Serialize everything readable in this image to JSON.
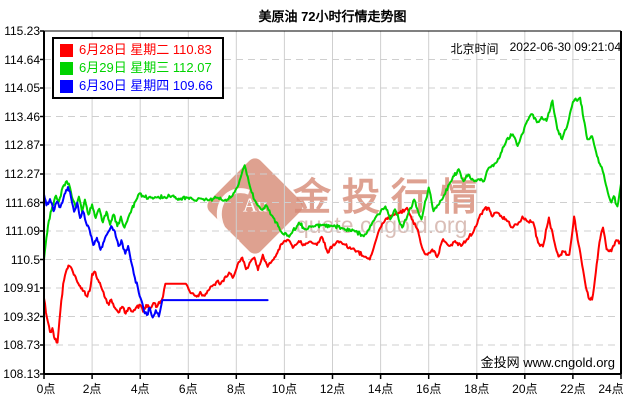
{
  "title": "美原油 72小时行情走势图",
  "header": {
    "timezone_label": "北京时间",
    "timestamp": "2022-06-30 09:21:04"
  },
  "footer": {
    "site": "金投网 www.cngold.org"
  },
  "watermark": {
    "brand": "金投行情",
    "url": "quote.cngold.org",
    "logo_text": "Au",
    "color": "#d58671"
  },
  "legend": {
    "entries": [
      {
        "label": "6月28日 星期二",
        "value": "110.83",
        "color": "#ff0000"
      },
      {
        "label": "6月29日 星期三",
        "value": "112.07",
        "color": "#00d300"
      },
      {
        "label": "6月30日 星期四",
        "value": "109.66",
        "color": "#0000ff"
      }
    ]
  },
  "chart_data": {
    "type": "line",
    "title": "美原油 72小时行情走势图",
    "x_axis": {
      "range_hours": [
        0,
        24
      ],
      "tick_hours": [
        0,
        2,
        4,
        6,
        8,
        10,
        12,
        14,
        16,
        18,
        20,
        22,
        24
      ],
      "tick_labels": [
        "0点",
        "2点",
        "4点",
        "6点",
        "8点",
        "10点",
        "12点",
        "14点",
        "16点",
        "18点",
        "20点",
        "22点",
        "24点"
      ]
    },
    "y_axis": {
      "range": [
        108.13,
        115.23
      ],
      "tick_labels": [
        "115.23",
        "114.64",
        "114.05",
        "113.46",
        "112.87",
        "112.27",
        "111.68",
        "111.09",
        "110.5",
        "109.91",
        "109.32",
        "108.73",
        "108.13"
      ]
    },
    "grid": {
      "horizontal": "dashed",
      "vertical": "solid",
      "color": "#cfcfcf"
    },
    "series": [
      {
        "name": "6月28日 星期二",
        "close": 110.83,
        "color": "#ff0000",
        "points": [
          [
            0,
            109.7
          ],
          [
            0.12,
            109.3
          ],
          [
            0.25,
            109.0
          ],
          [
            0.35,
            109.08
          ],
          [
            0.45,
            108.85
          ],
          [
            0.56,
            108.78
          ],
          [
            0.68,
            109.42
          ],
          [
            0.8,
            110.0
          ],
          [
            0.95,
            110.3
          ],
          [
            1.05,
            110.37
          ],
          [
            1.2,
            110.25
          ],
          [
            1.35,
            110.08
          ],
          [
            1.5,
            109.95
          ],
          [
            1.65,
            109.85
          ],
          [
            1.8,
            109.73
          ],
          [
            1.9,
            109.85
          ],
          [
            2.0,
            110.2
          ],
          [
            2.1,
            110.25
          ],
          [
            2.25,
            110.08
          ],
          [
            2.4,
            109.9
          ],
          [
            2.55,
            109.7
          ],
          [
            2.7,
            109.56
          ],
          [
            2.8,
            109.67
          ],
          [
            2.95,
            109.5
          ],
          [
            3.1,
            109.4
          ],
          [
            3.25,
            109.52
          ],
          [
            3.4,
            109.38
          ],
          [
            3.55,
            109.5
          ],
          [
            3.7,
            109.42
          ],
          [
            3.85,
            109.52
          ],
          [
            4.0,
            109.56
          ],
          [
            4.12,
            109.42
          ],
          [
            4.25,
            109.56
          ],
          [
            4.4,
            109.5
          ],
          [
            4.55,
            109.6
          ],
          [
            4.7,
            109.52
          ],
          [
            4.85,
            109.64
          ],
          [
            4.95,
            109.73
          ],
          [
            5.05,
            110.0
          ],
          [
            5.9,
            110.0
          ],
          [
            6.05,
            109.85
          ],
          [
            6.2,
            109.8
          ],
          [
            6.35,
            109.73
          ],
          [
            6.5,
            109.83
          ],
          [
            6.65,
            109.75
          ],
          [
            6.8,
            109.85
          ],
          [
            7.0,
            109.95
          ],
          [
            7.2,
            110.05
          ],
          [
            7.35,
            110.0
          ],
          [
            7.55,
            110.15
          ],
          [
            7.7,
            110.23
          ],
          [
            7.85,
            110.12
          ],
          [
            8.05,
            110.39
          ],
          [
            8.25,
            110.54
          ],
          [
            8.4,
            110.3
          ],
          [
            8.55,
            110.43
          ],
          [
            8.75,
            110.54
          ],
          [
            8.9,
            110.28
          ],
          [
            9.1,
            110.6
          ],
          [
            9.3,
            110.35
          ],
          [
            9.55,
            110.5
          ],
          [
            9.75,
            110.7
          ],
          [
            9.95,
            110.85
          ],
          [
            10.15,
            110.91
          ],
          [
            10.35,
            110.74
          ],
          [
            10.6,
            110.88
          ],
          [
            10.85,
            110.8
          ],
          [
            11.1,
            110.87
          ],
          [
            11.35,
            110.8
          ],
          [
            11.55,
            110.97
          ],
          [
            11.8,
            110.64
          ],
          [
            12.0,
            110.78
          ],
          [
            12.2,
            110.88
          ],
          [
            12.5,
            110.81
          ],
          [
            12.8,
            110.72
          ],
          [
            13.05,
            110.67
          ],
          [
            13.3,
            110.56
          ],
          [
            13.55,
            110.5
          ],
          [
            13.9,
            111.06
          ],
          [
            14.2,
            111.33
          ],
          [
            14.5,
            111.42
          ],
          [
            14.8,
            111.47
          ],
          [
            15.1,
            111.57
          ],
          [
            15.3,
            111.33
          ],
          [
            15.55,
            111.12
          ],
          [
            15.75,
            110.71
          ],
          [
            15.95,
            110.6
          ],
          [
            16.15,
            110.71
          ],
          [
            16.35,
            110.55
          ],
          [
            16.6,
            110.92
          ],
          [
            16.85,
            110.78
          ],
          [
            17.1,
            110.88
          ],
          [
            17.35,
            110.78
          ],
          [
            17.6,
            110.92
          ],
          [
            17.85,
            111.06
          ],
          [
            18.1,
            111.37
          ],
          [
            18.3,
            111.53
          ],
          [
            18.5,
            111.57
          ],
          [
            18.65,
            111.39
          ],
          [
            18.85,
            111.47
          ],
          [
            19.05,
            111.37
          ],
          [
            19.3,
            111.29
          ],
          [
            19.5,
            111.16
          ],
          [
            19.7,
            111.22
          ],
          [
            19.9,
            111.39
          ],
          [
            20.1,
            111.29
          ],
          [
            20.35,
            111.27
          ],
          [
            20.55,
            110.85
          ],
          [
            20.75,
            110.77
          ],
          [
            21.0,
            111.37
          ],
          [
            21.2,
            110.92
          ],
          [
            21.4,
            110.56
          ],
          [
            21.6,
            110.67
          ],
          [
            21.85,
            110.6
          ],
          [
            22.05,
            111.39
          ],
          [
            22.2,
            110.9
          ],
          [
            22.35,
            110.5
          ],
          [
            22.5,
            110.05
          ],
          [
            22.65,
            109.71
          ],
          [
            22.8,
            109.67
          ],
          [
            22.95,
            110.23
          ],
          [
            23.1,
            110.85
          ],
          [
            23.25,
            111.16
          ],
          [
            23.4,
            110.71
          ],
          [
            23.6,
            110.67
          ],
          [
            23.8,
            110.9
          ],
          [
            24,
            110.83
          ]
        ]
      },
      {
        "name": "6月29日 星期三",
        "close": 112.07,
        "color": "#00d300",
        "points": [
          [
            0,
            110.5
          ],
          [
            0.1,
            110.95
          ],
          [
            0.2,
            111.3
          ],
          [
            0.35,
            111.6
          ],
          [
            0.5,
            111.82
          ],
          [
            0.62,
            111.7
          ],
          [
            0.78,
            112.0
          ],
          [
            0.95,
            112.12
          ],
          [
            1.08,
            111.99
          ],
          [
            1.2,
            111.74
          ],
          [
            1.32,
            111.57
          ],
          [
            1.45,
            111.8
          ],
          [
            1.58,
            111.49
          ],
          [
            1.7,
            111.74
          ],
          [
            1.85,
            111.43
          ],
          [
            2.0,
            111.64
          ],
          [
            2.15,
            111.36
          ],
          [
            2.3,
            111.55
          ],
          [
            2.45,
            111.27
          ],
          [
            2.6,
            111.49
          ],
          [
            2.75,
            111.22
          ],
          [
            2.9,
            111.43
          ],
          [
            3.05,
            111.19
          ],
          [
            3.2,
            111.39
          ],
          [
            3.35,
            111.16
          ],
          [
            3.5,
            111.36
          ],
          [
            3.65,
            111.55
          ],
          [
            3.8,
            111.7
          ],
          [
            3.95,
            111.86
          ],
          [
            4.15,
            111.8
          ],
          [
            4.45,
            111.78
          ],
          [
            4.75,
            111.8
          ],
          [
            5.05,
            111.78
          ],
          [
            5.35,
            111.82
          ],
          [
            5.65,
            111.74
          ],
          [
            5.95,
            111.78
          ],
          [
            6.25,
            111.72
          ],
          [
            6.55,
            111.76
          ],
          [
            6.9,
            111.74
          ],
          [
            7.2,
            111.78
          ],
          [
            7.5,
            111.72
          ],
          [
            7.8,
            111.8
          ],
          [
            8.05,
            112.0
          ],
          [
            8.35,
            112.45
          ],
          [
            8.6,
            111.95
          ],
          [
            8.8,
            111.7
          ],
          [
            9.05,
            111.53
          ],
          [
            9.25,
            111.62
          ],
          [
            9.5,
            111.4
          ],
          [
            9.9,
            111.05
          ],
          [
            10.2,
            110.97
          ],
          [
            10.6,
            111.26
          ],
          [
            10.9,
            111.12
          ],
          [
            11.2,
            111.18
          ],
          [
            11.6,
            111.22
          ],
          [
            12.0,
            111.19
          ],
          [
            12.4,
            111.15
          ],
          [
            12.9,
            111.1
          ],
          [
            13.3,
            110.98
          ],
          [
            13.7,
            111.3
          ],
          [
            14.2,
            111.6
          ],
          [
            14.4,
            111.33
          ],
          [
            14.6,
            111.54
          ],
          [
            14.9,
            111.16
          ],
          [
            15.15,
            111.45
          ],
          [
            15.4,
            111.74
          ],
          [
            15.7,
            111.33
          ],
          [
            16.0,
            111.99
          ],
          [
            16.2,
            111.5
          ],
          [
            16.6,
            111.78
          ],
          [
            16.9,
            112.1
          ],
          [
            17.25,
            112.37
          ],
          [
            17.45,
            112.12
          ],
          [
            17.65,
            112.26
          ],
          [
            17.9,
            112.12
          ],
          [
            18.1,
            112.16
          ],
          [
            18.3,
            112.12
          ],
          [
            18.5,
            112.4
          ],
          [
            18.85,
            112.53
          ],
          [
            19.0,
            112.7
          ],
          [
            19.25,
            112.99
          ],
          [
            19.5,
            113.09
          ],
          [
            19.7,
            112.85
          ],
          [
            19.9,
            113.1
          ],
          [
            20.1,
            113.37
          ],
          [
            20.3,
            113.51
          ],
          [
            20.5,
            113.34
          ],
          [
            20.7,
            113.45
          ],
          [
            20.9,
            113.37
          ],
          [
            21.15,
            113.79
          ],
          [
            21.35,
            113.2
          ],
          [
            21.55,
            112.99
          ],
          [
            21.75,
            113.24
          ],
          [
            22.0,
            113.76
          ],
          [
            22.3,
            113.85
          ],
          [
            22.45,
            113.4
          ],
          [
            22.6,
            112.99
          ],
          [
            22.8,
            113.05
          ],
          [
            23.0,
            112.64
          ],
          [
            23.2,
            112.41
          ],
          [
            23.45,
            111.89
          ],
          [
            23.6,
            111.68
          ],
          [
            23.7,
            111.81
          ],
          [
            23.85,
            111.6
          ],
          [
            24,
            112.07
          ]
        ]
      },
      {
        "name": "6月30日 星期四",
        "close": 109.66,
        "color": "#0000ff",
        "points": [
          [
            0,
            111.85
          ],
          [
            0.1,
            111.62
          ],
          [
            0.25,
            111.75
          ],
          [
            0.4,
            111.5
          ],
          [
            0.55,
            111.7
          ],
          [
            0.68,
            111.58
          ],
          [
            0.85,
            111.85
          ],
          [
            1.0,
            112.0
          ],
          [
            1.12,
            111.8
          ],
          [
            1.25,
            111.49
          ],
          [
            1.38,
            111.68
          ],
          [
            1.5,
            111.36
          ],
          [
            1.62,
            111.5
          ],
          [
            1.75,
            111.26
          ],
          [
            1.9,
            111.1
          ],
          [
            2.05,
            110.8
          ],
          [
            2.2,
            110.95
          ],
          [
            2.35,
            110.7
          ],
          [
            2.5,
            110.88
          ],
          [
            2.65,
            111.05
          ],
          [
            2.8,
            111.19
          ],
          [
            2.95,
            111.08
          ],
          [
            3.1,
            110.78
          ],
          [
            3.22,
            110.9
          ],
          [
            3.38,
            110.62
          ],
          [
            3.5,
            110.78
          ],
          [
            3.65,
            110.4
          ],
          [
            3.78,
            110.12
          ],
          [
            3.9,
            109.92
          ],
          [
            4.02,
            109.7
          ],
          [
            4.15,
            109.45
          ],
          [
            4.28,
            109.35
          ],
          [
            4.4,
            109.5
          ],
          [
            4.52,
            109.3
          ],
          [
            4.65,
            109.45
          ],
          [
            4.78,
            109.32
          ],
          [
            4.92,
            109.66
          ],
          [
            9.3,
            109.66
          ]
        ]
      }
    ]
  }
}
